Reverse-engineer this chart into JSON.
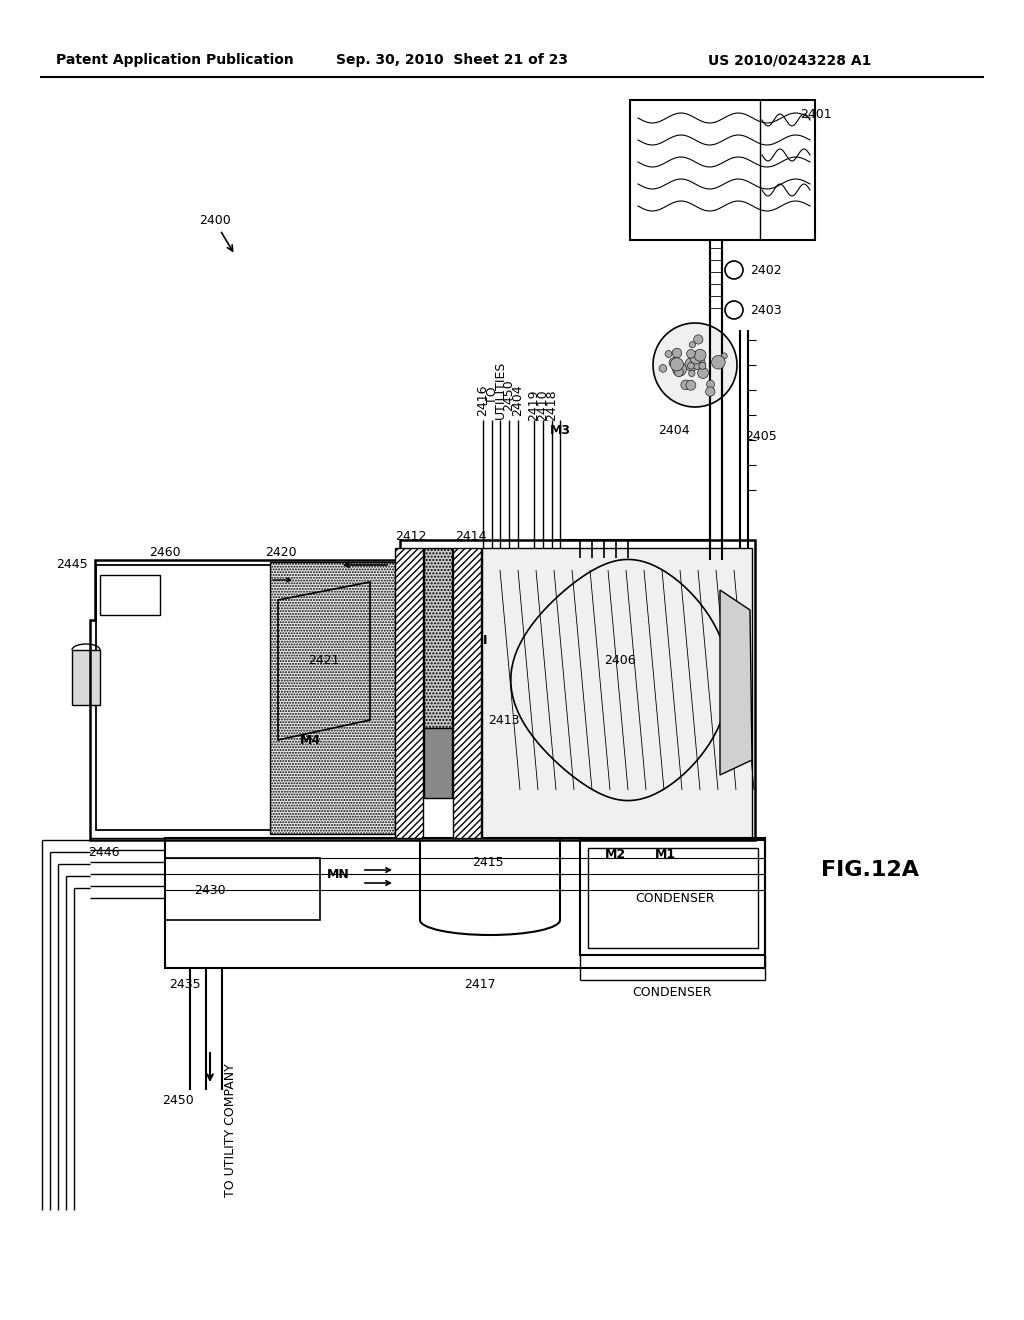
{
  "header_left": "Patent Application Publication",
  "header_mid": "Sep. 30, 2010  Sheet 21 of 23",
  "header_right": "US 2010/0243228 A1",
  "fig_label": "FIG.12A",
  "bg_color": "#ffffff",
  "lc": "#000000"
}
